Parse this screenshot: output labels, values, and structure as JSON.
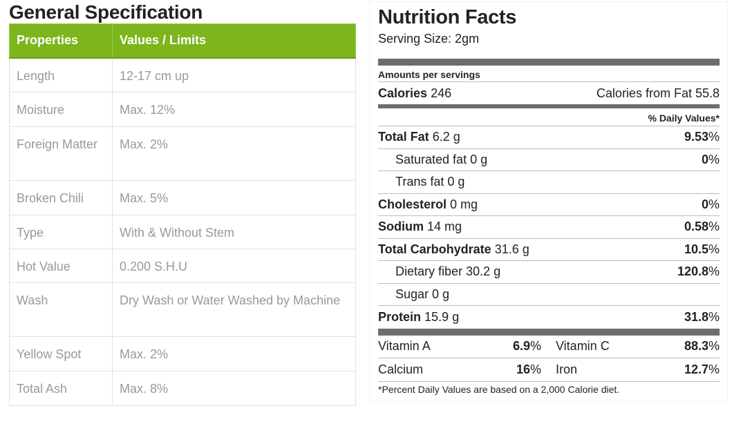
{
  "spec": {
    "title": "General Specification",
    "headers": [
      "Properties",
      "Values / Limits"
    ],
    "rows": [
      {
        "property": "Length",
        "value": "12-17 cm up"
      },
      {
        "property": "Moisture",
        "value": "Max. 12%"
      },
      {
        "property": "Foreign Matter",
        "value": "Max. 2%"
      },
      {
        "property": "Broken Chili",
        "value": "Max. 5%"
      },
      {
        "property": "Type",
        "value": "With & Without Stem"
      },
      {
        "property": "Hot Value",
        "value": "0.200 S.H.U"
      },
      {
        "property": "Wash",
        "value": "Dry Wash or Water Washed by Machine"
      },
      {
        "property": "Yellow Spot",
        "value": "Max. 2%"
      },
      {
        "property": "Total Ash",
        "value": "Max. 8%"
      }
    ]
  },
  "nutrition": {
    "title": "Nutrition Facts",
    "serving": "Serving Size: 2gm",
    "amounts_label": "Amounts per servings",
    "calories_label": "Calories",
    "calories_value": "246",
    "calories_fat": "Calories from Fat 55.8",
    "dv_header": "% Daily Values*",
    "nutrients": {
      "total_fat": {
        "label": "Total Fat",
        "amount": "6.2 g",
        "dv": "9.53"
      },
      "saturated_fat": {
        "label": "Saturated fat 0 g",
        "dv": "0"
      },
      "trans_fat": {
        "label": "Trans fat 0 g"
      },
      "cholesterol": {
        "label": "Cholesterol",
        "amount": "0 mg",
        "dv": "0"
      },
      "sodium": {
        "label": "Sodium",
        "amount": "14 mg",
        "dv": "0.58"
      },
      "carbohydrate": {
        "label": "Total Carbohydrate",
        "amount": "31.6 g",
        "dv": "10.5"
      },
      "fiber": {
        "label": "Dietary fiber 30.2 g",
        "dv": "120.8"
      },
      "sugar": {
        "label": "Sugar 0 g"
      },
      "protein": {
        "label": "Protein",
        "amount": "15.9 g",
        "dv": "31.8"
      }
    },
    "percent_sign": "%",
    "vitamins": {
      "vitamin_a": {
        "label": "Vitamin A",
        "dv": "6.9"
      },
      "vitamin_c": {
        "label": "Vitamin C",
        "dv": "88.3"
      },
      "calcium": {
        "label": "Calcium",
        "dv": "16"
      },
      "iron": {
        "label": "Iron",
        "dv": "12.7"
      }
    },
    "footnote": "*Percent Daily Values are based on a 2,000 Calorie diet."
  },
  "colors": {
    "header_green": "#7db51c",
    "bar_gray": "#6d6d6d",
    "muted_text": "#999999"
  }
}
